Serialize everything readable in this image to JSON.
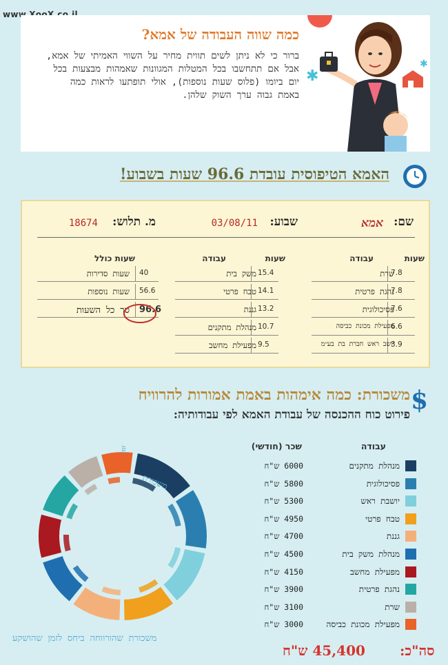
{
  "watermark": "www.XooX.co.il",
  "intro": {
    "title": "כמה שווה העבודה של אמא?",
    "text": "ברור כי לא ניתן לשים תווית מחיר על השווי האמיתי של אמא, אבל אם תתחשבו בכל המטלות המגוונות שאמהות מבצעות בכל יום ביומו (פלוס שעות נוספות), אולי תופתעו לראות כמה באמת גבוה ערך השוק שלהן."
  },
  "section2": {
    "title": "האמא הטיפוסית עובדת 96.6 שעות בשבוע!"
  },
  "card": {
    "name_label": "שם:",
    "name_value": "אמא",
    "week_label": "שבוע:",
    "week_value": "03/08/11",
    "id_label": "מ. תלוש:",
    "id_value": "18674",
    "col_hours": "שעות",
    "col_job": "עבודה",
    "col_total": "שעות כולל",
    "left_rows": [
      {
        "hours": "7.8",
        "job": "שרת"
      },
      {
        "hours": "7.8",
        "job": "נהגת פרטית"
      },
      {
        "hours": "7.6",
        "job": "פסיכולוגית"
      },
      {
        "hours": "6.6",
        "job": "מפעילת מכונת כביסה"
      },
      {
        "hours": "3.9",
        "job": "יושב ראש חברת בת בע״מ"
      }
    ],
    "mid_rows": [
      {
        "hours": "15.4",
        "job": "משק בית"
      },
      {
        "hours": "14.1",
        "job": "טבח פרטי"
      },
      {
        "hours": "13.2",
        "job": "גננת"
      },
      {
        "hours": "10.7",
        "job": "מנהלת מתקנים"
      },
      {
        "hours": "9.5",
        "job": "מפעילת מחשב"
      }
    ],
    "total_rows": [
      {
        "hours": "40",
        "job": "שעות סדירות"
      },
      {
        "hours": "56.6",
        "job": "שעות נוספות"
      },
      {
        "hours": "96.6",
        "job": "סך כל השעות"
      }
    ]
  },
  "section3": {
    "title": "משכורת: כמה אימהות באמת אמורות להרוויח",
    "subtitle": "פירוט כוח ההכנסה של עבודת האמא לפי עבודותיה:",
    "col_job": "עבודה",
    "col_salary": "שכר (חודשי)",
    "caption": "משכורת שהורווחה ביחס לזמן שהושקע",
    "donut_label": "משכורת",
    "donut_label2": "זמן",
    "total_label": "סה\"כ:",
    "total_value": "45,400 ש\"ח"
  },
  "colors": {
    "accent": "#e07b2b",
    "total_red": "#d6332d",
    "caption_blue": "#5aaed0"
  },
  "chart_data": {
    "type": "pie",
    "title": "",
    "categories": [
      "מנהלת מתקנים",
      "פסיכולוגית",
      "יושבת ראש",
      "טבח פרטי",
      "גננת",
      "מנהלת משק בית",
      "מפעילת מחשב",
      "נהגת פרטית",
      "שרת",
      "מפעילת מכונת כביסה"
    ],
    "salaries_text": [
      "6000 ש\"ח",
      "5800 ש\"ח",
      "5300 ש\"ח",
      "4950 ש\"ח",
      "4700 ש\"ח",
      "4500 ש\"ח",
      "4150 ש\"ח",
      "3900 ש\"ח",
      "3100 ש\"ח",
      "3000 ש\"ח"
    ],
    "values": [
      6000,
      5800,
      5300,
      4950,
      4700,
      4500,
      4150,
      3900,
      3100,
      3000
    ],
    "colors": [
      "#1b3f63",
      "#2a7fb0",
      "#7fd0dc",
      "#f0a01d",
      "#f4b07a",
      "#1f6fb0",
      "#a9191f",
      "#24a7a2",
      "#bab0a8",
      "#e8622a"
    ],
    "legend_position": "right"
  }
}
